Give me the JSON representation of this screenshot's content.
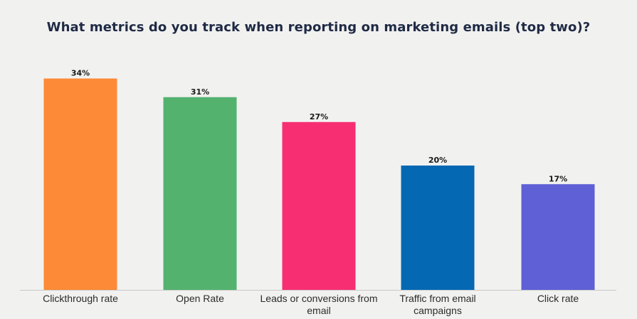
{
  "chart_data": {
    "type": "bar",
    "title": "What metrics do you track when reporting on marketing emails (top two)?",
    "xlabel": "",
    "ylabel": "",
    "ylim": [
      0,
      40
    ],
    "grid": false,
    "legend": "none",
    "categories": [
      "Clickthrough rate",
      "Open Rate",
      "Leads or conversions from email",
      "Traffic from email campaigns",
      "Click rate"
    ],
    "category_lines": [
      [
        "Clickthrough rate"
      ],
      [
        "Open Rate"
      ],
      [
        "Leads or conversions from",
        "email"
      ],
      [
        "Traffic from email",
        "campaigns"
      ],
      [
        "Click rate"
      ]
    ],
    "values": [
      34,
      31,
      27,
      20,
      17
    ],
    "value_labels": [
      "34%",
      "31%",
      "27%",
      "20%",
      "17%"
    ],
    "colors": [
      "#fc8a36",
      "#53b26e",
      "#f72f72",
      "#0568b3",
      "#5f5fd6"
    ],
    "baseline_color": "#c8c8c8"
  }
}
